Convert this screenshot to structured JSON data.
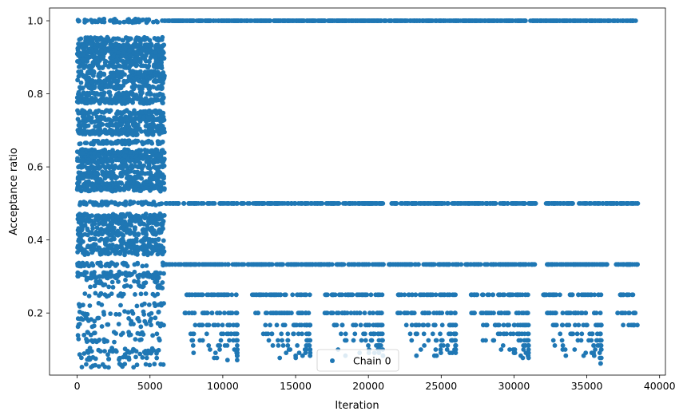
{
  "chart_data": {
    "type": "scatter",
    "xlabel": "Iteration",
    "ylabel": "Acceptance ratio",
    "xlim": [
      -1900,
      40400
    ],
    "ylim": [
      0.03,
      1.035
    ],
    "x_ticks": [
      0,
      5000,
      10000,
      15000,
      20000,
      25000,
      30000,
      35000,
      40000
    ],
    "x_tick_labels": [
      "0",
      "5000",
      "10000",
      "15000",
      "20000",
      "25000",
      "30000",
      "35000",
      "40000"
    ],
    "y_ticks": [
      0.2,
      0.4,
      0.6,
      0.8,
      1.0
    ],
    "y_tick_labels": [
      "0.2",
      "0.4",
      "0.6",
      "0.8",
      "1.0"
    ],
    "grid": false,
    "legend_position": "bottom-center",
    "series": [
      {
        "name": "Chain 0",
        "color": "#1f77b4",
        "marker": "circle",
        "segments": [
          {
            "x_range": [
              0,
              6000
            ],
            "y_values": [
              1.0,
              0.95,
              0.933,
              0.923,
              0.917,
              0.909,
              0.9,
              0.889,
              0.875,
              0.857,
              0.846,
              0.833,
              0.818,
              0.8,
              0.786,
              0.778,
              0.75,
              0.733,
              0.727,
              0.714,
              0.7,
              0.692,
              0.667,
              0.643,
              0.636,
              0.625,
              0.615,
              0.6,
              0.583,
              0.571,
              0.556,
              0.545,
              0.538,
              0.5,
              0.467,
              0.462,
              0.455,
              0.444,
              0.429,
              0.417,
              0.4,
              0.385,
              0.375,
              0.364,
              0.333,
              0.308,
              0.3,
              0.286,
              0.273,
              0.25,
              0.222,
              0.2,
              0.182,
              0.167,
              0.143,
              0.125,
              0.1,
              0.091,
              0.077,
              0.056
            ]
          },
          {
            "x_range": [
              6000,
              38500
            ],
            "y_values": [
              1.0,
              0.5,
              0.333
            ]
          },
          {
            "x_range": [
              7200,
              11000
            ],
            "y_values": [
              0.25,
              0.2,
              0.167,
              0.143,
              0.125,
              0.111,
              0.1,
              0.091,
              0.083,
              0.077,
              0.071
            ]
          },
          {
            "x_range": [
              12000,
              16000
            ],
            "y_values": [
              0.25,
              0.2,
              0.167,
              0.143,
              0.125,
              0.111,
              0.1,
              0.091,
              0.083,
              0.077
            ]
          },
          {
            "x_range": [
              17000,
              21000
            ],
            "y_values": [
              0.25,
              0.2,
              0.167,
              0.143,
              0.125,
              0.111,
              0.1,
              0.091,
              0.083
            ]
          },
          {
            "x_range": [
              22000,
              26000
            ],
            "y_values": [
              0.25,
              0.2,
              0.167,
              0.143,
              0.125,
              0.111,
              0.1,
              0.091,
              0.083
            ]
          },
          {
            "x_range": [
              27000,
              31000
            ],
            "y_values": [
              0.25,
              0.2,
              0.167,
              0.143,
              0.125,
              0.111,
              0.1,
              0.091,
              0.083,
              0.077
            ]
          },
          {
            "x_range": [
              32000,
              36000
            ],
            "y_values": [
              0.25,
              0.2,
              0.167,
              0.143,
              0.125,
              0.111,
              0.1,
              0.091,
              0.083,
              0.077,
              0.062
            ]
          },
          {
            "x_range": [
              37000,
              38500
            ],
            "y_values": [
              0.25,
              0.2,
              0.167
            ]
          }
        ]
      }
    ]
  }
}
